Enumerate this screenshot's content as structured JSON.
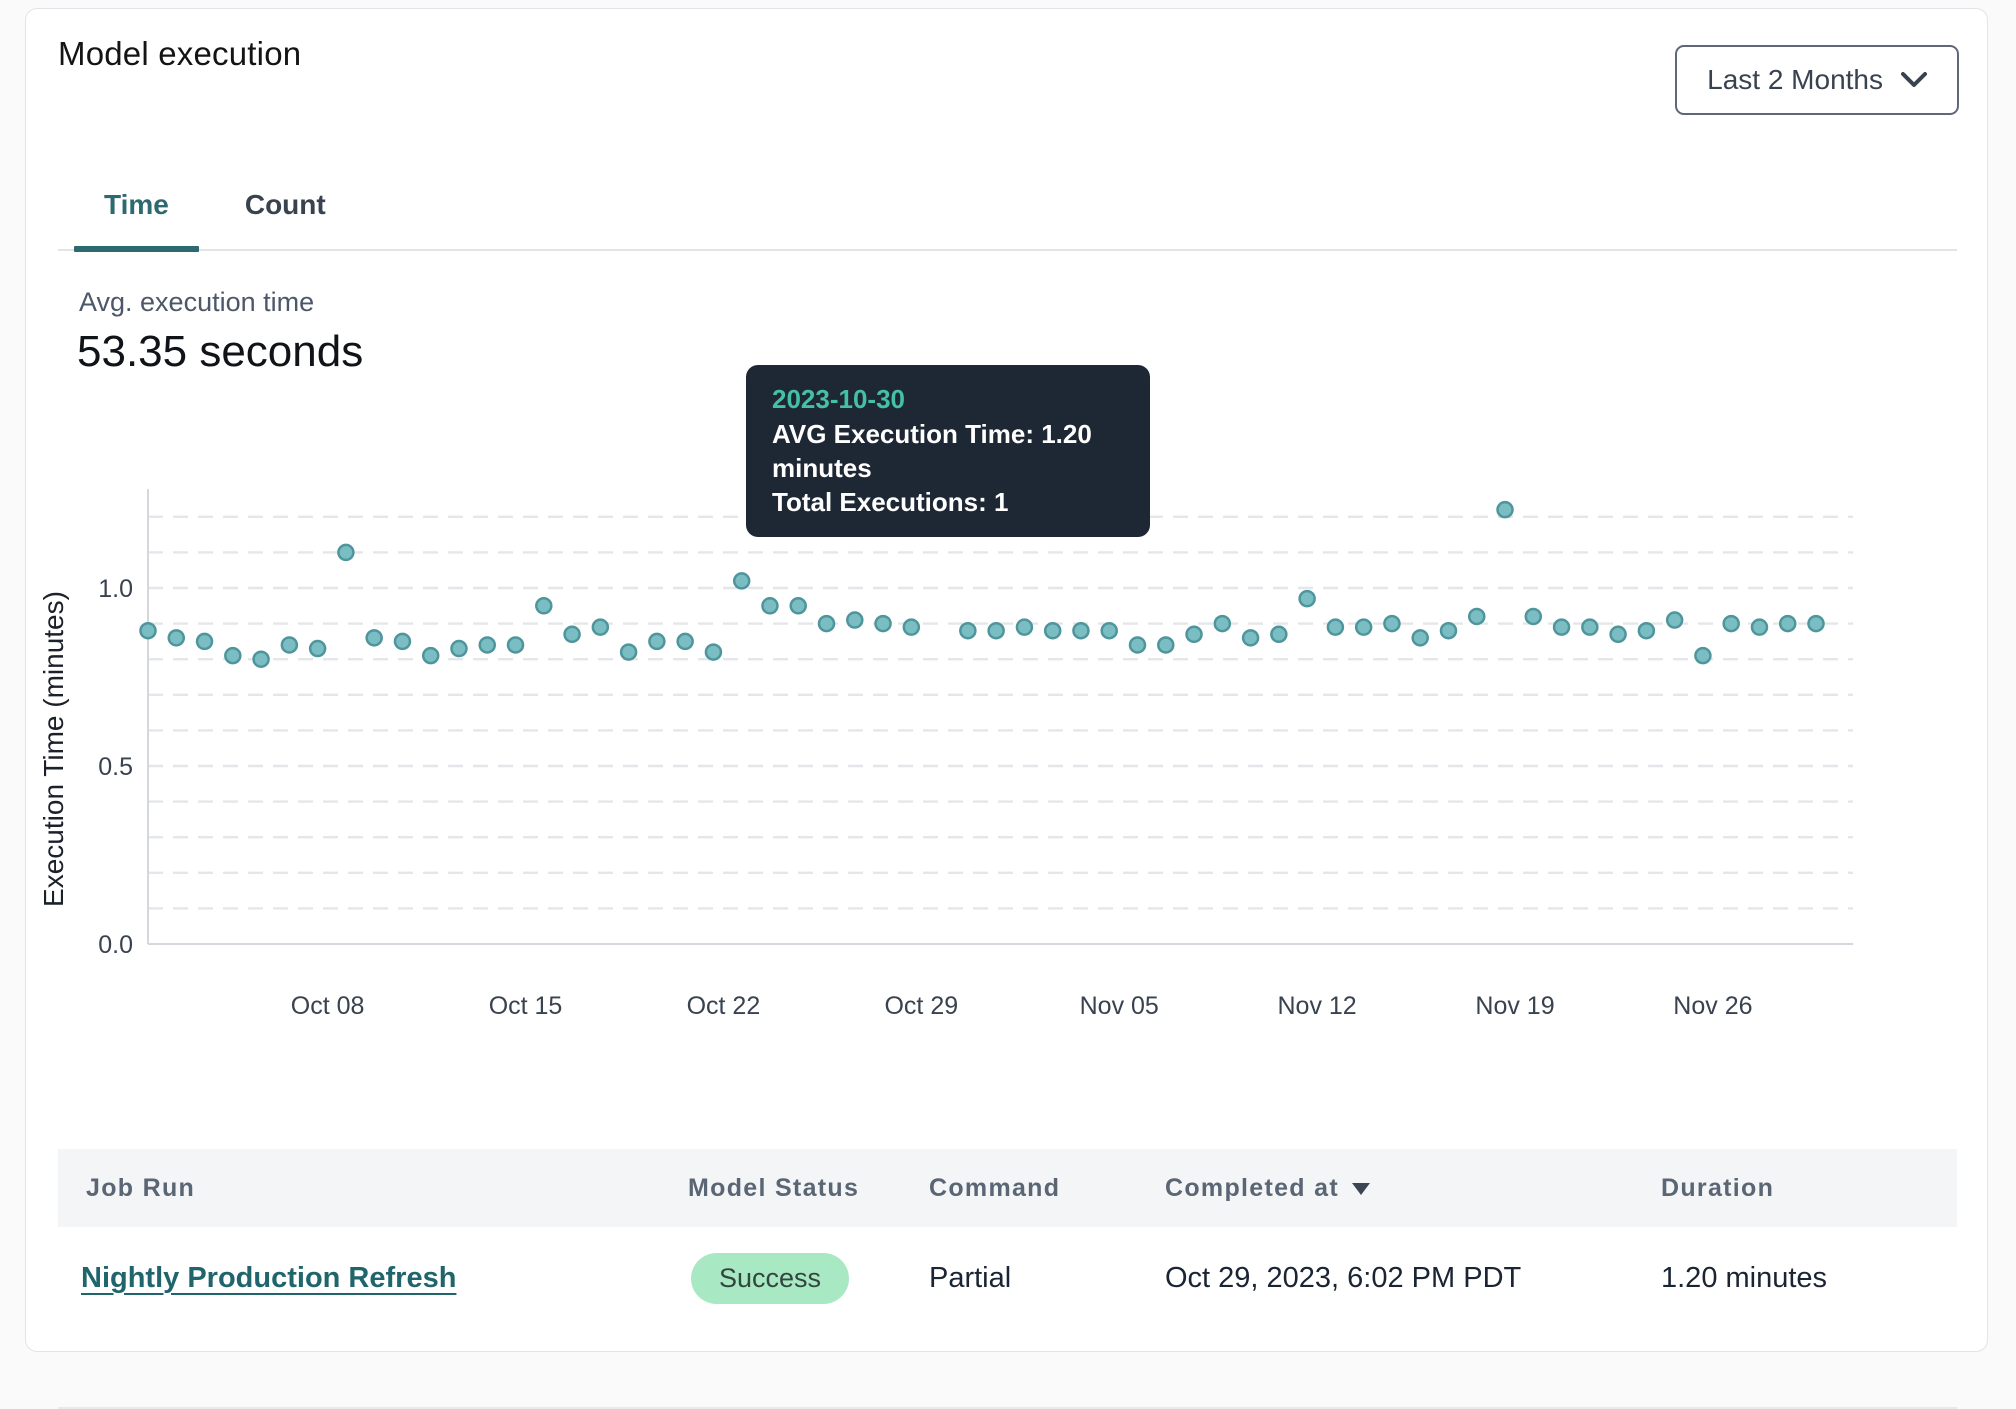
{
  "header": {
    "title": "Model execution",
    "range_selector": {
      "label": "Last 2 Months"
    }
  },
  "tabs": [
    {
      "label": "Time",
      "active": true
    },
    {
      "label": "Count",
      "active": false
    }
  ],
  "summary": {
    "label": "Avg. execution time",
    "value": "53.35 seconds"
  },
  "tooltip": {
    "date": "2023-10-30",
    "avg_line": "AVG Execution Time: 1.20 minutes",
    "total_line": "Total Executions: 1"
  },
  "chart_data": {
    "type": "scatter",
    "title": "",
    "xlabel": "",
    "ylabel": "Execution Time (minutes)",
    "ylim": [
      0,
      1.25
    ],
    "grid": "horizontal-dashed-0.1",
    "legend": "none",
    "y_ticks": [
      "0.0",
      "0.5",
      "1.0"
    ],
    "x_tick_labels": [
      "Oct 08",
      "Oct 15",
      "Oct 22",
      "Oct 29",
      "Nov 05",
      "Nov 12",
      "Nov 19",
      "Nov 26"
    ],
    "x_tick_indices": [
      6,
      13,
      20,
      27,
      34,
      41,
      48,
      55
    ],
    "highlight_date": "2023-10-30",
    "highlight_value": 1.2,
    "dates": [
      "2023-10-02",
      "2023-10-03",
      "2023-10-04",
      "2023-10-05",
      "2023-10-06",
      "2023-10-07",
      "2023-10-08",
      "2023-10-09",
      "2023-10-10",
      "2023-10-11",
      "2023-10-12",
      "2023-10-13",
      "2023-10-14",
      "2023-10-15",
      "2023-10-16",
      "2023-10-17",
      "2023-10-18",
      "2023-10-19",
      "2023-10-20",
      "2023-10-21",
      "2023-10-22",
      "2023-10-23",
      "2023-10-24",
      "2023-10-25",
      "2023-10-26",
      "2023-10-27",
      "2023-10-28",
      "2023-10-29",
      "2023-10-30",
      "2023-10-31",
      "2023-11-01",
      "2023-11-02",
      "2023-11-03",
      "2023-11-04",
      "2023-11-05",
      "2023-11-06",
      "2023-11-07",
      "2023-11-08",
      "2023-11-09",
      "2023-11-10",
      "2023-11-11",
      "2023-11-12",
      "2023-11-13",
      "2023-11-14",
      "2023-11-15",
      "2023-11-16",
      "2023-11-17",
      "2023-11-18",
      "2023-11-19",
      "2023-11-20",
      "2023-11-21",
      "2023-11-22",
      "2023-11-23",
      "2023-11-24",
      "2023-11-25",
      "2023-11-26",
      "2023-11-27",
      "2023-11-28",
      "2023-11-29",
      "2023-11-30"
    ],
    "values": [
      0.88,
      0.86,
      0.85,
      0.81,
      0.8,
      0.84,
      0.83,
      1.1,
      0.86,
      0.85,
      0.81,
      0.83,
      0.84,
      0.84,
      0.95,
      0.87,
      0.89,
      0.82,
      0.85,
      0.85,
      0.82,
      1.02,
      0.95,
      0.95,
      0.9,
      0.91,
      0.9,
      0.89,
      1.2,
      0.88,
      0.88,
      0.89,
      0.88,
      0.88,
      0.88,
      0.84,
      0.84,
      0.87,
      0.9,
      0.86,
      0.87,
      0.97,
      0.89,
      0.89,
      0.9,
      0.86,
      0.88,
      0.92,
      1.22,
      0.92,
      0.89,
      0.89,
      0.87,
      0.88,
      0.91,
      0.81,
      0.9,
      0.89,
      0.9,
      0.9
    ]
  },
  "table": {
    "columns": [
      {
        "label": "Job Run"
      },
      {
        "label": "Model Status"
      },
      {
        "label": "Command"
      },
      {
        "label": "Completed at",
        "sorted": "desc"
      },
      {
        "label": "Duration"
      }
    ],
    "rows": [
      {
        "job_run": "Nightly Production Refresh",
        "model_status": "Success",
        "command": "Partial",
        "completed_at": "Oct 29, 2023, 6:02 PM PDT",
        "duration": "1.20 minutes"
      }
    ]
  },
  "colors": {
    "accent_teal": "#2d6a70",
    "dot_fill": "#7abec4",
    "dot_stroke": "#4f959c",
    "dot_highlight": "#4f8f97",
    "grid_line": "#e4e6e9",
    "axis_line": "#d4d7dc",
    "tick_text": "#39424f",
    "axis_title_text": "#1b212b",
    "tooltip_bg": "#1e2734",
    "tooltip_date": "#43c0a6",
    "success_bg": "#a8e8c3",
    "success_text": "#31463f"
  }
}
